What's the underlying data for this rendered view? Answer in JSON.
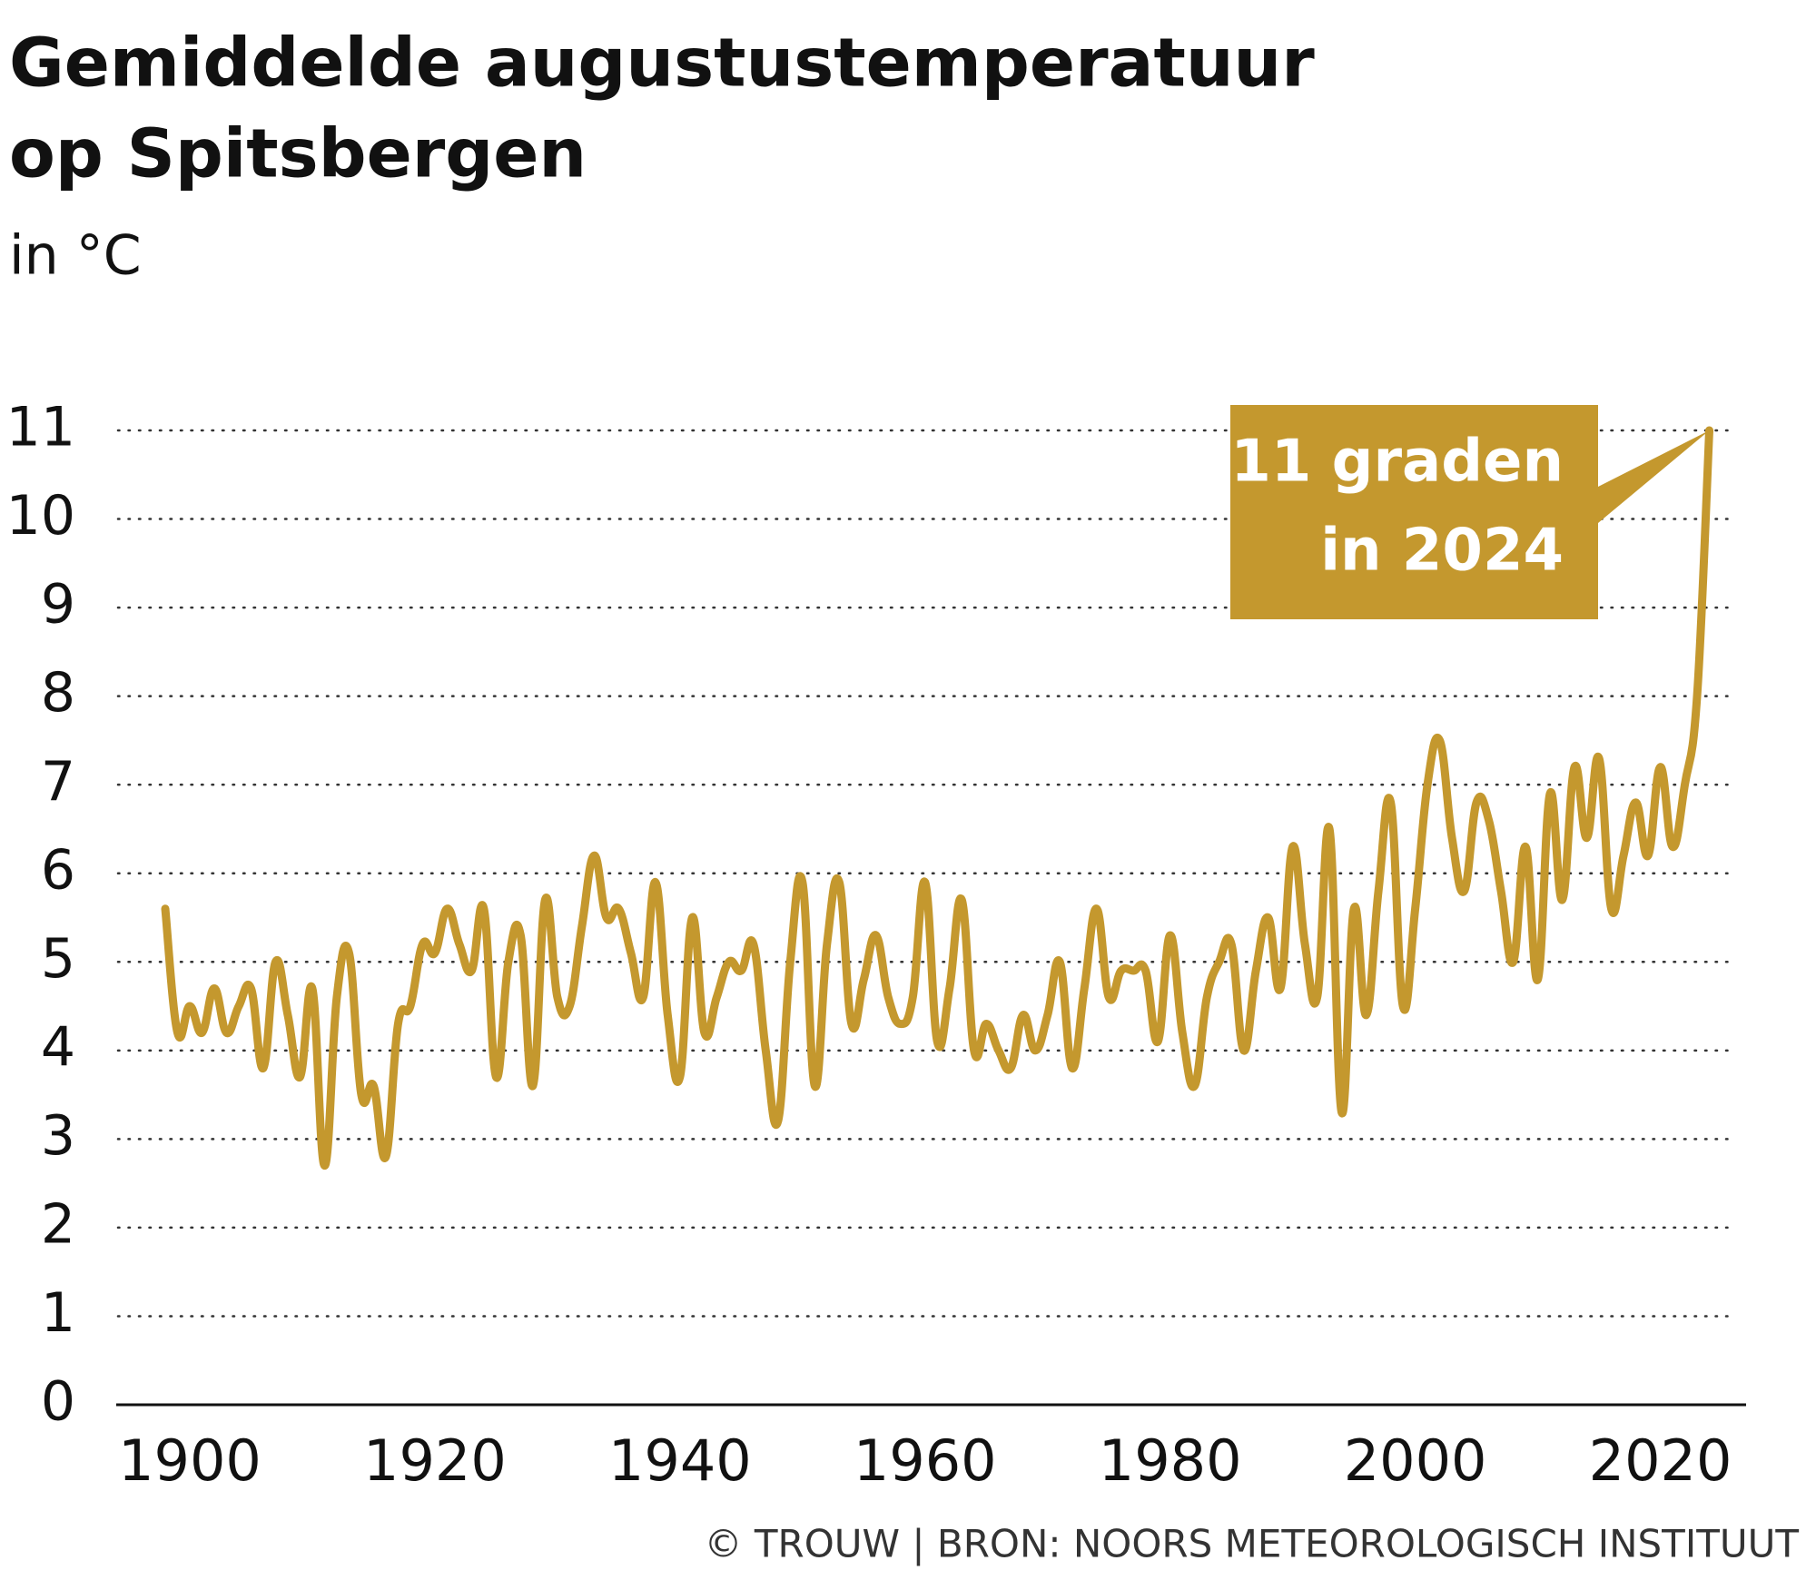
{
  "chart_data": {
    "type": "line",
    "title_lines": [
      "Gemiddelde augustustemperatuur",
      "op Spitsbergen"
    ],
    "subtitle": "in °C",
    "source": "© TROUW | BRON: NOORS METEOROLOGISCH INSTITUUT",
    "annotation_lines": [
      "11 graden",
      "in 2024"
    ],
    "color": "#c4982e",
    "grid": true,
    "xlim": [
      1894,
      2027
    ],
    "xticks": [
      1900,
      1920,
      1940,
      1960,
      1980,
      2000,
      2020
    ],
    "ylim": [
      0,
      11
    ],
    "yticks": [
      0,
      1,
      2,
      3,
      4,
      5,
      6,
      7,
      8,
      9,
      10,
      11
    ],
    "x": [
      1898,
      1899,
      1900,
      1901,
      1902,
      1903,
      1904,
      1905,
      1906,
      1907,
      1908,
      1909,
      1910,
      1911,
      1912,
      1913,
      1914,
      1915,
      1916,
      1917,
      1918,
      1919,
      1920,
      1921,
      1922,
      1923,
      1924,
      1925,
      1926,
      1927,
      1928,
      1929,
      1930,
      1931,
      1932,
      1933,
      1934,
      1935,
      1936,
      1937,
      1938,
      1939,
      1940,
      1941,
      1942,
      1943,
      1944,
      1945,
      1946,
      1947,
      1948,
      1949,
      1950,
      1951,
      1952,
      1953,
      1954,
      1955,
      1956,
      1957,
      1958,
      1959,
      1960,
      1961,
      1962,
      1963,
      1964,
      1965,
      1966,
      1967,
      1968,
      1969,
      1970,
      1971,
      1972,
      1973,
      1974,
      1975,
      1976,
      1977,
      1978,
      1979,
      1980,
      1981,
      1982,
      1983,
      1984,
      1985,
      1986,
      1987,
      1988,
      1989,
      1990,
      1991,
      1992,
      1993,
      1994,
      1995,
      1996,
      1997,
      1998,
      1999,
      2000,
      2001,
      2002,
      2003,
      2004,
      2005,
      2006,
      2007,
      2008,
      2009,
      2010,
      2011,
      2012,
      2013,
      2014,
      2015,
      2016,
      2017,
      2018,
      2019,
      2020,
      2021,
      2022,
      2023,
      2024
    ],
    "values": [
      5.6,
      4.2,
      4.5,
      4.2,
      4.7,
      4.2,
      4.5,
      4.7,
      3.8,
      5.0,
      4.4,
      3.7,
      4.7,
      2.7,
      4.6,
      5.1,
      3.5,
      3.6,
      2.8,
      4.3,
      4.5,
      5.2,
      5.1,
      5.6,
      5.2,
      4.9,
      5.6,
      3.7,
      5.0,
      5.3,
      3.6,
      5.7,
      4.6,
      4.5,
      5.4,
      6.2,
      5.5,
      5.6,
      5.1,
      4.6,
      5.9,
      4.4,
      3.7,
      5.5,
      4.2,
      4.6,
      5.0,
      4.9,
      5.2,
      4.0,
      3.2,
      5.0,
      5.9,
      3.6,
      5.2,
      5.9,
      4.3,
      4.8,
      5.3,
      4.6,
      4.3,
      4.6,
      5.9,
      4.1,
      4.7,
      5.7,
      4.0,
      4.3,
      4.0,
      3.8,
      4.4,
      4.0,
      4.4,
      5.0,
      3.8,
      4.7,
      5.6,
      4.6,
      4.9,
      4.9,
      4.9,
      4.1,
      5.3,
      4.2,
      3.6,
      4.6,
      5.0,
      5.2,
      4.0,
      4.9,
      5.5,
      4.7,
      6.3,
      5.2,
      4.6,
      6.5,
      3.3,
      5.6,
      4.4,
      5.8,
      6.8,
      4.5,
      5.6,
      7.0,
      7.5,
      6.4,
      5.8,
      6.8,
      6.6,
      5.8,
      5.0,
      6.3,
      4.8,
      6.9,
      5.7,
      7.2,
      6.4,
      7.3,
      5.6,
      6.2,
      6.8,
      6.2,
      7.2,
      6.3,
      7.0,
      8.0,
      11.0
    ]
  }
}
